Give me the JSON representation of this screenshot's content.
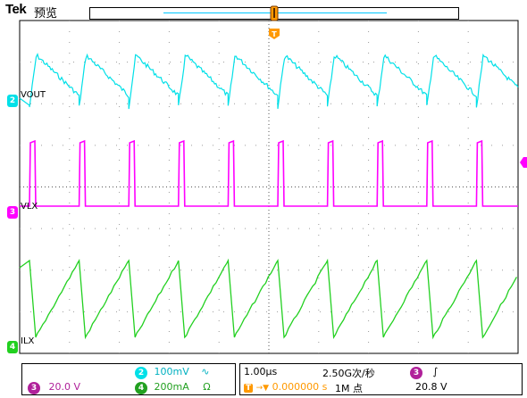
{
  "header": {
    "brand": "Tek",
    "mode": "预览"
  },
  "colors": {
    "ch2": "#00e0e8",
    "ch3": "#ff00ff",
    "ch4": "#22d020",
    "grid": "#9a9a9a",
    "trigger": "#ff9900"
  },
  "channels": [
    {
      "id": "2",
      "label": "VOUT",
      "color": "#00e0e8"
    },
    {
      "id": "3",
      "label": "VLX",
      "color": "#ff00ff"
    },
    {
      "id": "4",
      "label": "ILX",
      "color": "#22d020"
    }
  ],
  "trigger_marker": "T",
  "readout": {
    "ch3_scale": "20.0 V",
    "ch2_scale": "100mV",
    "ch2_coupling_icon": "∿",
    "ch4_scale": "200mA",
    "ch4_unit_icon": "Ω",
    "timebase": "1.00μs",
    "sample_rate": "2.50G次/秒",
    "trigger_delay": "0.000000 s",
    "record_length": "1M 点",
    "trigger_source": "3",
    "trigger_slope_icon": "∫",
    "trigger_level": "20.8 V"
  }
}
